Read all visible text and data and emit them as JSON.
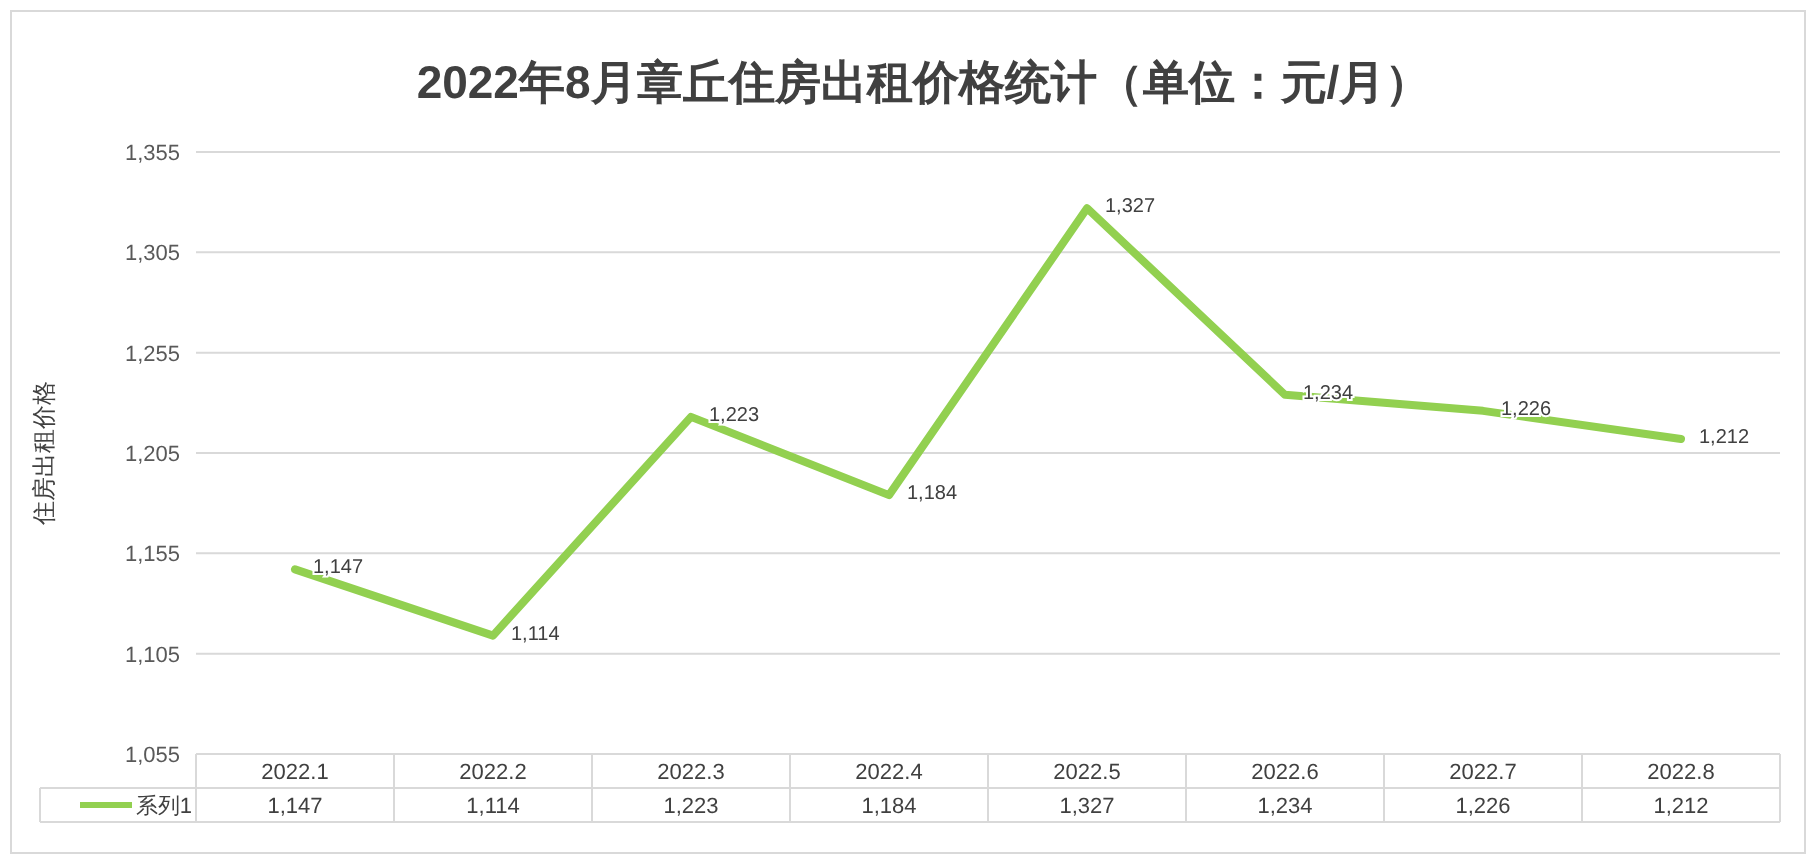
{
  "chart_data": {
    "type": "line",
    "title": "2022年8月章丘住房出租价格统计（单位：元/月）",
    "ylabel": "住房出租价格",
    "categories": [
      "2022.1",
      "2022.2",
      "2022.3",
      "2022.4",
      "2022.5",
      "2022.6",
      "2022.7",
      "2022.8"
    ],
    "series": [
      {
        "name": "系列1",
        "color": "#92d050",
        "values": [
          1147,
          1114,
          1223,
          1184,
          1327,
          1234,
          1226,
          1212
        ],
        "value_labels": [
          "1,147",
          "1,114",
          "1,223",
          "1,184",
          "1,327",
          "1,234",
          "1,226",
          "1,212"
        ]
      }
    ],
    "ylim": [
      1055,
      1355
    ],
    "yticks": [
      {
        "value": 1055,
        "label": "1,055"
      },
      {
        "value": 1105,
        "label": "1,105"
      },
      {
        "value": 1155,
        "label": "1,155"
      },
      {
        "value": 1205,
        "label": "1,205"
      },
      {
        "value": 1255,
        "label": "1,255"
      },
      {
        "value": 1305,
        "label": "1,305"
      },
      {
        "value": 1355,
        "label": "1,355"
      }
    ],
    "grid": "y",
    "legend": "bottom"
  }
}
